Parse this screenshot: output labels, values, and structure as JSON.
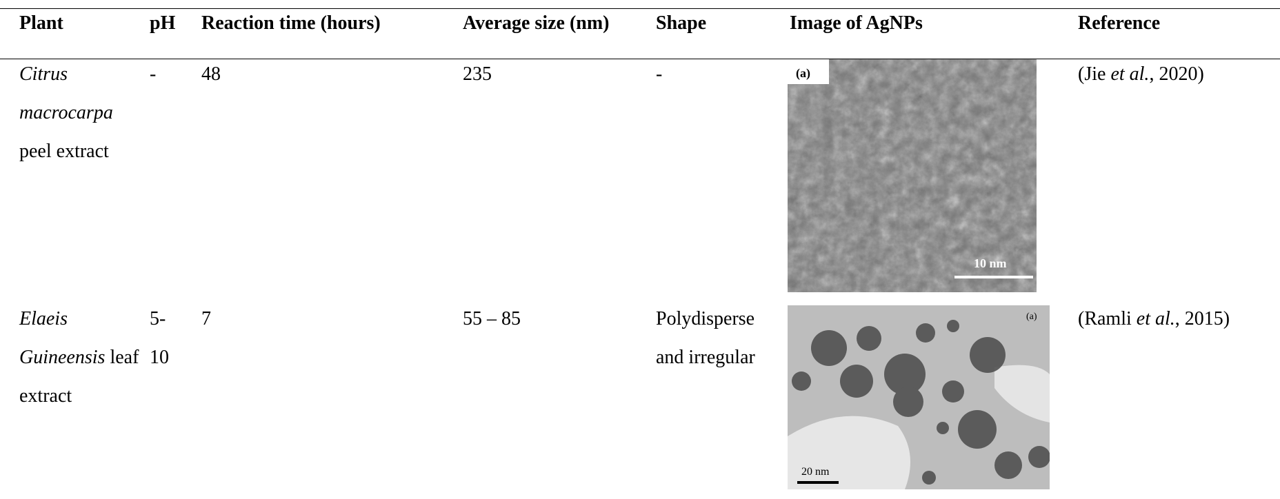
{
  "table": {
    "headers": [
      "Plant",
      "pH",
      "Reaction time (hours)",
      "Average size (nm)",
      "Shape",
      "Image of AgNPs",
      "Reference"
    ],
    "rows": [
      {
        "plant": [
          "Citrus macrocarpa",
          "peel extract"
        ],
        "ph": "-",
        "time": "48",
        "size": "235",
        "shape": "-",
        "image": {
          "panel_label": "(a)",
          "scale_bar": "10 nm"
        },
        "reference": [
          "(Jie ",
          "et al.",
          ", 2020)"
        ]
      },
      {
        "plant": [
          "Elaeis Guineensis",
          "leaf extract"
        ],
        "ph": "5-10",
        "time": "7",
        "size": "55 – 85",
        "shape": "Polydisperse and irregular",
        "image": {
          "panel_label": "(a)",
          "scale_bar": "20 nm"
        },
        "reference": [
          "(Ramli ",
          "et al.",
          ", 2015)"
        ]
      }
    ]
  }
}
